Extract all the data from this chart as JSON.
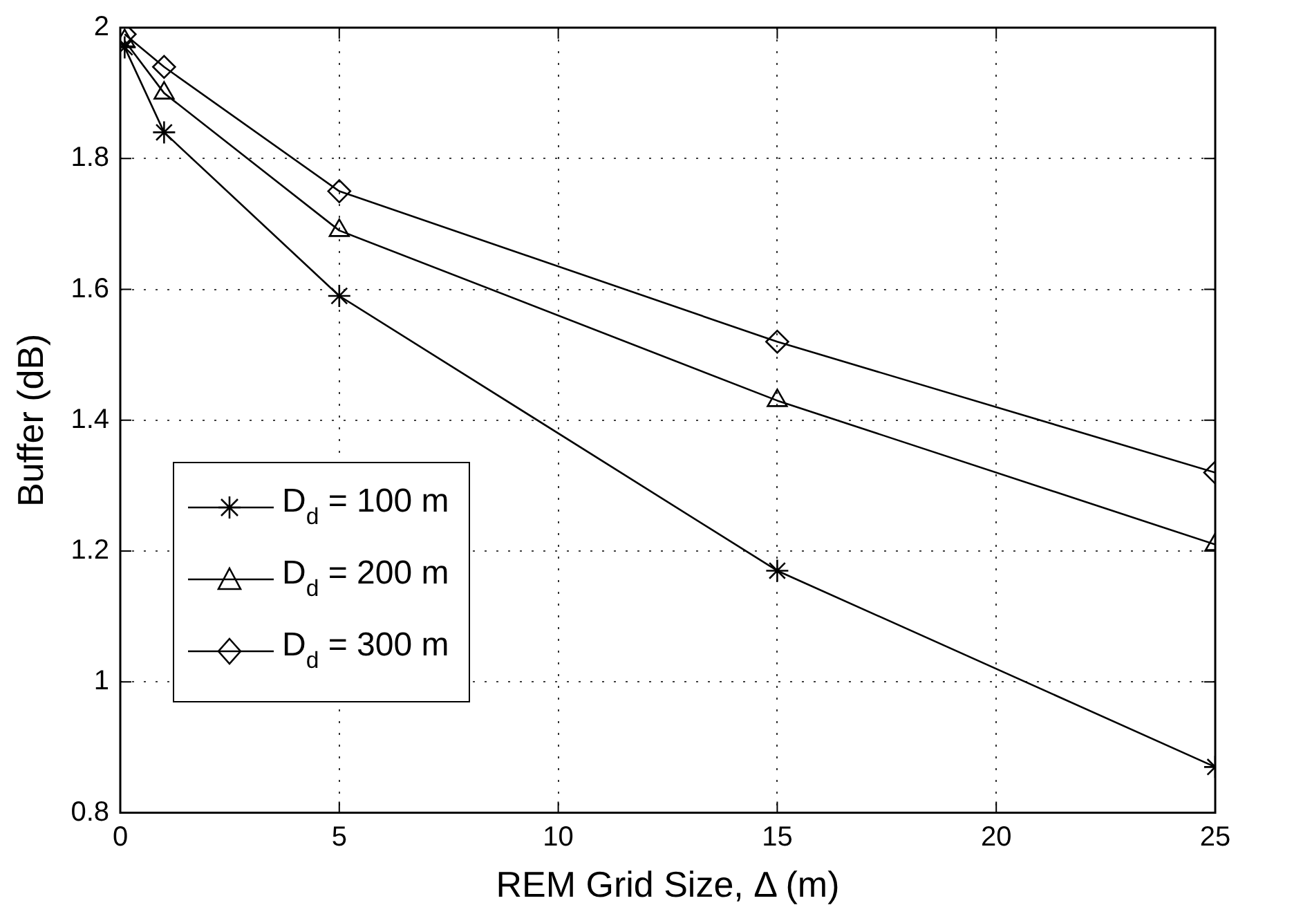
{
  "chart_data": {
    "type": "line",
    "xlabel": "REM Grid Size, Δ (m)",
    "ylabel": "Buffer (dB)",
    "x": [
      0.1,
      1,
      5,
      15,
      25
    ],
    "series": [
      {
        "name": "D$_{d}$ = 100 m",
        "color": "#000000",
        "marker": "cross",
        "values": [
          1.97,
          1.84,
          1.59,
          1.17,
          0.87
        ]
      },
      {
        "name": "D$_{d}$ = 200 m",
        "color": "#000000",
        "marker": "triangle",
        "values": [
          1.98,
          1.9,
          1.69,
          1.43,
          1.21
        ]
      },
      {
        "name": "D$_{d}$ = 300 m",
        "color": "#000000",
        "marker": "diamond",
        "values": [
          1.99,
          1.94,
          1.75,
          1.52,
          1.32
        ]
      }
    ],
    "xlim": [
      0,
      25
    ],
    "xticks": [
      0,
      5,
      10,
      15,
      20,
      25
    ],
    "ylim": [
      0.8,
      2
    ],
    "yticks": [
      0.8,
      1,
      1.2,
      1.4,
      1.6,
      1.8,
      2
    ],
    "grid": true,
    "legend": "bottom left",
    "line_style": "solid"
  }
}
